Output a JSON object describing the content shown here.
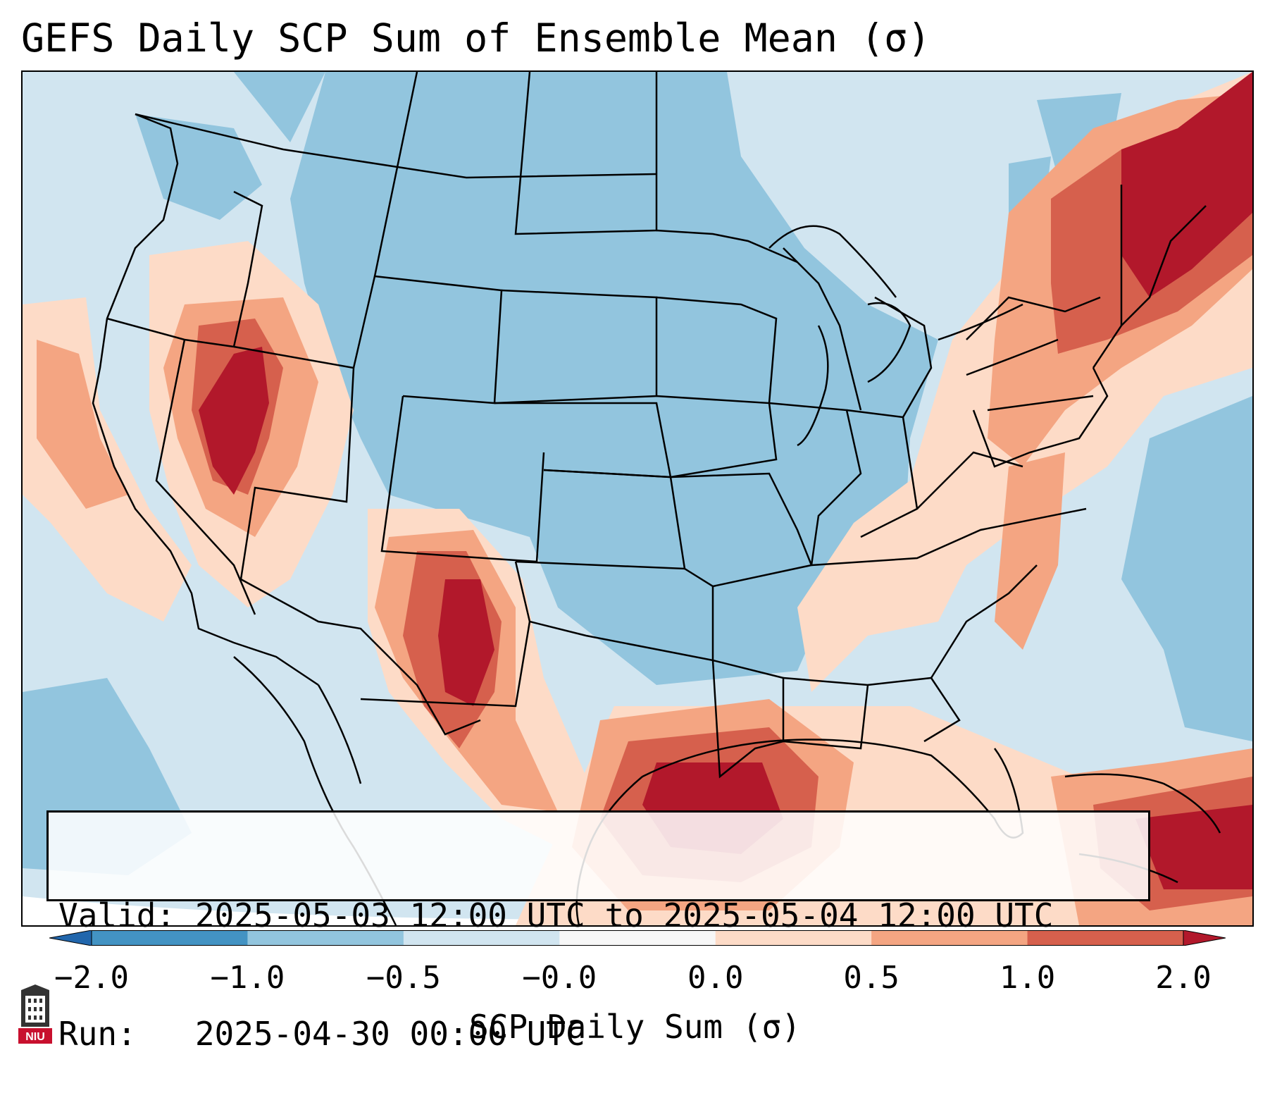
{
  "title": "GEFS Daily SCP Sum of Ensemble Mean (σ)",
  "info": {
    "valid": "Valid: 2025-05-03 12:00 UTC to 2025-05-04 12:00 UTC",
    "run": "Run:   2025-04-30 00:00 UTC"
  },
  "colorbar": {
    "label": "SCP Daily Sum (σ)",
    "ticks": [
      "−2.0",
      "−1.0",
      "−0.5",
      "−0.0",
      "0.0",
      "0.5",
      "1.0",
      "2.0"
    ],
    "colors": [
      "#4393c3",
      "#92c5de",
      "#d1e5f0",
      "#f7f7f7",
      "#fddbc7",
      "#f4a582",
      "#d6604d"
    ],
    "under_color": "#2166ac",
    "over_color": "#b2182b"
  },
  "logo": {
    "text": "NIU",
    "icon": "niu-tower-logo"
  }
}
